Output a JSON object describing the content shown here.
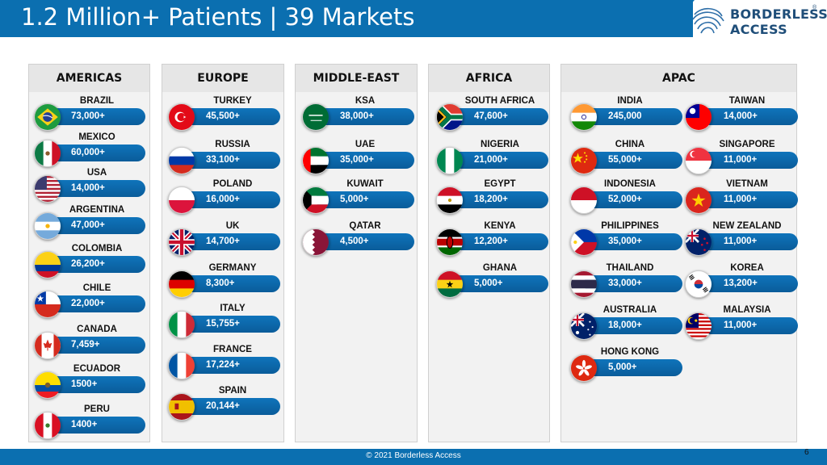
{
  "title": "1.2 Million+ Patients | 39 Markets",
  "logo": {
    "line1": "BORDERLESS",
    "line2": "ACCESS",
    "reg": "®"
  },
  "footer": "© 2021 Borderless Access",
  "page_number": "6",
  "regions": {
    "americas": {
      "header": "AMERICAS",
      "countries": [
        {
          "name": "BRAZIL",
          "value": "73,000+"
        },
        {
          "name": "MEXICO",
          "value": "60,000+"
        },
        {
          "name": "USA",
          "value": "14,000+"
        },
        {
          "name": "ARGENTINA",
          "value": "47,000+"
        },
        {
          "name": "COLOMBIA",
          "value": "26,200+"
        },
        {
          "name": "CHILE",
          "value": "22,000+"
        },
        {
          "name": "CANADA",
          "value": "7,459+"
        },
        {
          "name": "ECUADOR",
          "value": "1500+"
        },
        {
          "name": "PERU",
          "value": "1400+"
        }
      ]
    },
    "europe": {
      "header": "EUROPE",
      "countries": [
        {
          "name": "TURKEY",
          "value": "45,500+"
        },
        {
          "name": "RUSSIA",
          "value": "33,100+"
        },
        {
          "name": "POLAND",
          "value": "16,000+"
        },
        {
          "name": "UK",
          "value": "14,700+"
        },
        {
          "name": "GERMANY",
          "value": "8,300+"
        },
        {
          "name": "ITALY",
          "value": "15,755+"
        },
        {
          "name": "FRANCE",
          "value": "17,224+"
        },
        {
          "name": "SPAIN",
          "value": "20,144+"
        }
      ]
    },
    "middle_east": {
      "header": "MIDDLE-EAST",
      "countries": [
        {
          "name": "KSA",
          "value": "38,000+"
        },
        {
          "name": "UAE",
          "value": "35,000+"
        },
        {
          "name": "KUWAIT",
          "value": "5,000+"
        },
        {
          "name": "QATAR",
          "value": "4,500+"
        }
      ]
    },
    "africa": {
      "header": "AFRICA",
      "countries": [
        {
          "name": "SOUTH AFRICA",
          "value": "47,600+"
        },
        {
          "name": "NIGERIA",
          "value": "21,000+"
        },
        {
          "name": "EGYPT",
          "value": "18,200+"
        },
        {
          "name": "KENYA",
          "value": "12,200+"
        },
        {
          "name": "GHANA",
          "value": "5,000+"
        }
      ]
    },
    "apac": {
      "header": "APAC",
      "countries": [
        {
          "name": "INDIA",
          "value": "245,000"
        },
        {
          "name": "TAIWAN",
          "value": "14,000+"
        },
        {
          "name": "CHINA",
          "value": "55,000+"
        },
        {
          "name": "SINGAPORE",
          "value": "11,000+"
        },
        {
          "name": "INDONESIA",
          "value": "52,000+"
        },
        {
          "name": "VIETNAM",
          "value": "11,000+"
        },
        {
          "name": "PHILIPPINES",
          "value": "35,000+"
        },
        {
          "name": "NEW ZEALAND",
          "value": "11,000+"
        },
        {
          "name": "THAILAND",
          "value": "33,000+"
        },
        {
          "name": "KOREA",
          "value": "13,200+"
        },
        {
          "name": "AUSTRALIA",
          "value": "18,000+"
        },
        {
          "name": "MALAYSIA",
          "value": "11,000+"
        },
        {
          "name": "HONG KONG",
          "value": "5,000+"
        }
      ]
    }
  }
}
